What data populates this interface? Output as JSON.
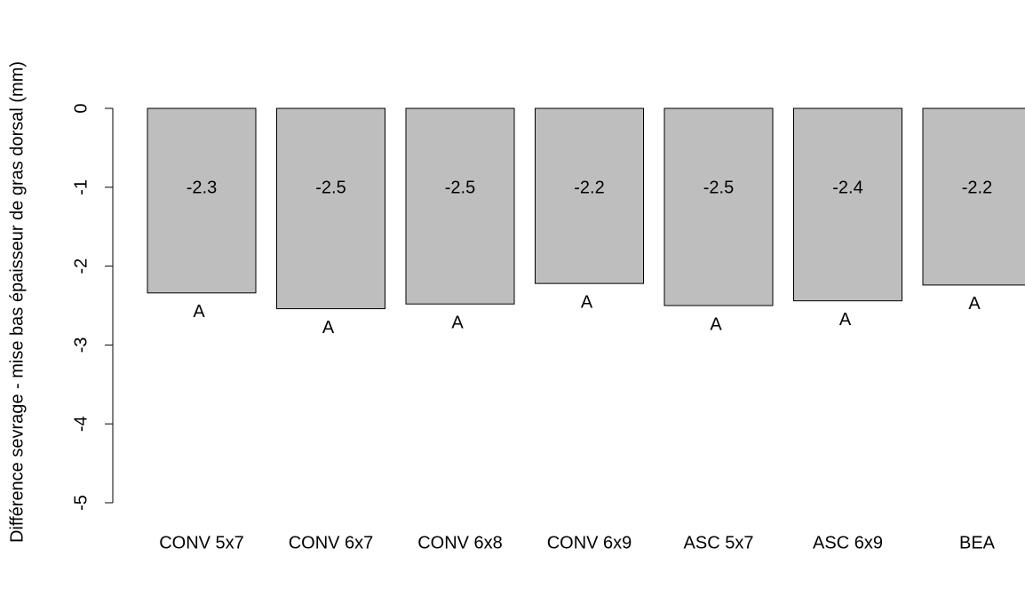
{
  "chart_data": {
    "type": "bar",
    "y_label": "Différence sevrage - mise bas épaisseur de gras dorsal (mm)",
    "categories": [
      "CONV 5x7",
      "CONV 6x7",
      "CONV 6x8",
      "CONV 6x9",
      "ASC 5x7",
      "ASC 6x9",
      "BEA"
    ],
    "values": [
      -2.34,
      -2.54,
      -2.48,
      -2.22,
      -2.5,
      -2.44,
      -2.24
    ],
    "value_labels": [
      "-2.3",
      "-2.5",
      "-2.5",
      "-2.2",
      "-2.5",
      "-2.4",
      "-2.2"
    ],
    "group_labels": [
      "A",
      "A",
      "A",
      "A",
      "A",
      "A",
      "A"
    ],
    "color": "#bebebe",
    "ylim": [
      -5,
      0
    ],
    "yticks": [
      -5,
      -4,
      -3,
      -2,
      -1,
      0
    ]
  }
}
